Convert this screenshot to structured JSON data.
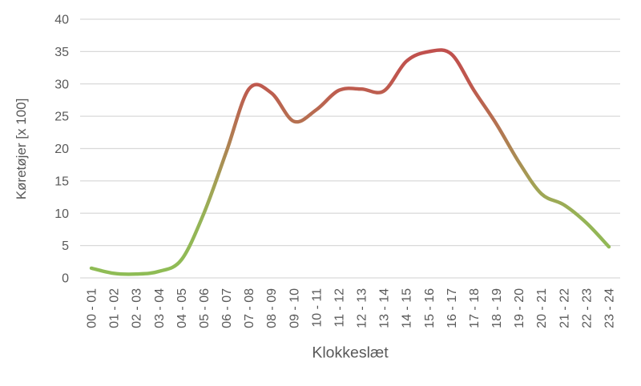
{
  "chart_data": {
    "type": "line",
    "title": "",
    "xlabel": "Klokkeslæt",
    "ylabel": "Køretøjer [x 100]",
    "categories": [
      "00 - 01",
      "01 - 02",
      "02 - 03",
      "03 - 04",
      "04 - 05",
      "05 - 06",
      "06 - 07",
      "07 - 08",
      "08 - 09",
      "09 - 10",
      "10 - 11",
      "11 - 12",
      "12 - 13",
      "13 - 14",
      "14 - 15",
      "15 - 16",
      "16 - 17",
      "17 - 18",
      "18 - 19",
      "19 - 20",
      "20 - 21",
      "21 - 22",
      "22 - 23",
      "23 - 24"
    ],
    "values": [
      1.5,
      0.7,
      0.6,
      1.0,
      2.8,
      10.0,
      19.5,
      29.2,
      28.6,
      24.2,
      26.0,
      29.0,
      29.2,
      28.9,
      33.5,
      35.0,
      34.6,
      29.0,
      23.8,
      17.9,
      13.0,
      11.3,
      8.5,
      4.8
    ],
    "ylim": [
      0,
      40
    ],
    "yticks": [
      0,
      5,
      10,
      15,
      20,
      25,
      30,
      35,
      40
    ],
    "grid": true,
    "legend": false,
    "smooth": true,
    "line_width": 4.4,
    "line_gradient_by_value": {
      "direction": "vertical",
      "stops": [
        {
          "value": 0,
          "color": "#8ebd55"
        },
        {
          "value": 9,
          "color": "#95b457"
        },
        {
          "value": 14,
          "color": "#a2a355"
        },
        {
          "value": 19,
          "color": "#ab8953"
        },
        {
          "value": 24.5,
          "color": "#b66f51"
        },
        {
          "value": 30,
          "color": "#bf584e"
        },
        {
          "value": 35,
          "color": "#c0504d"
        }
      ]
    },
    "colors": {
      "grid": "#d9d9d9",
      "axis_text": "#595959",
      "background": "#ffffff"
    }
  }
}
